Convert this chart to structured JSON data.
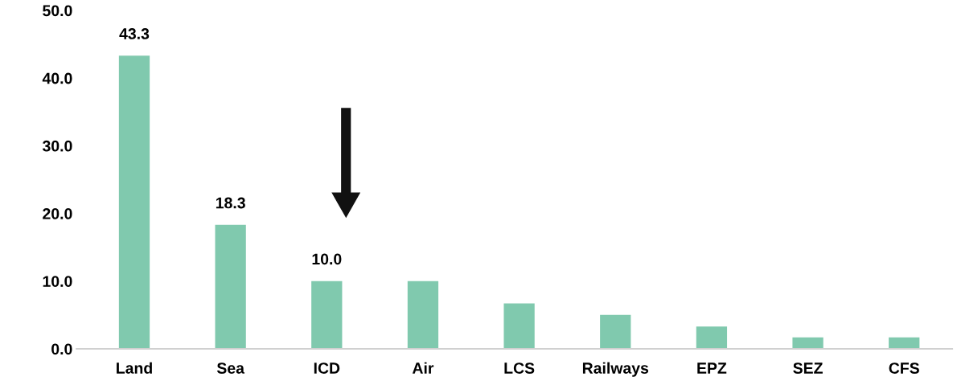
{
  "chart_data": {
    "type": "bar",
    "categories": [
      "Land",
      "Sea",
      "ICD",
      "Air",
      "LCS",
      "Railways",
      "EPZ",
      "SEZ",
      "CFS"
    ],
    "values": [
      43.3,
      18.3,
      10.0,
      10.0,
      6.7,
      5.0,
      3.3,
      1.7,
      1.7
    ],
    "value_labels": [
      "43.3",
      "18.3",
      "10.0",
      null,
      null,
      null,
      null,
      null,
      null
    ],
    "color": "#80c9ae",
    "ylim": [
      0,
      50
    ],
    "yticks": [
      {
        "value": 0,
        "label": "0.0"
      },
      {
        "value": 10,
        "label": "10.0"
      },
      {
        "value": 20,
        "label": "20.0"
      },
      {
        "value": 30,
        "label": "30.0"
      },
      {
        "value": 40,
        "label": "40.0"
      },
      {
        "value": 50,
        "label": "50.0"
      }
    ],
    "grid": false,
    "legend": false
  }
}
